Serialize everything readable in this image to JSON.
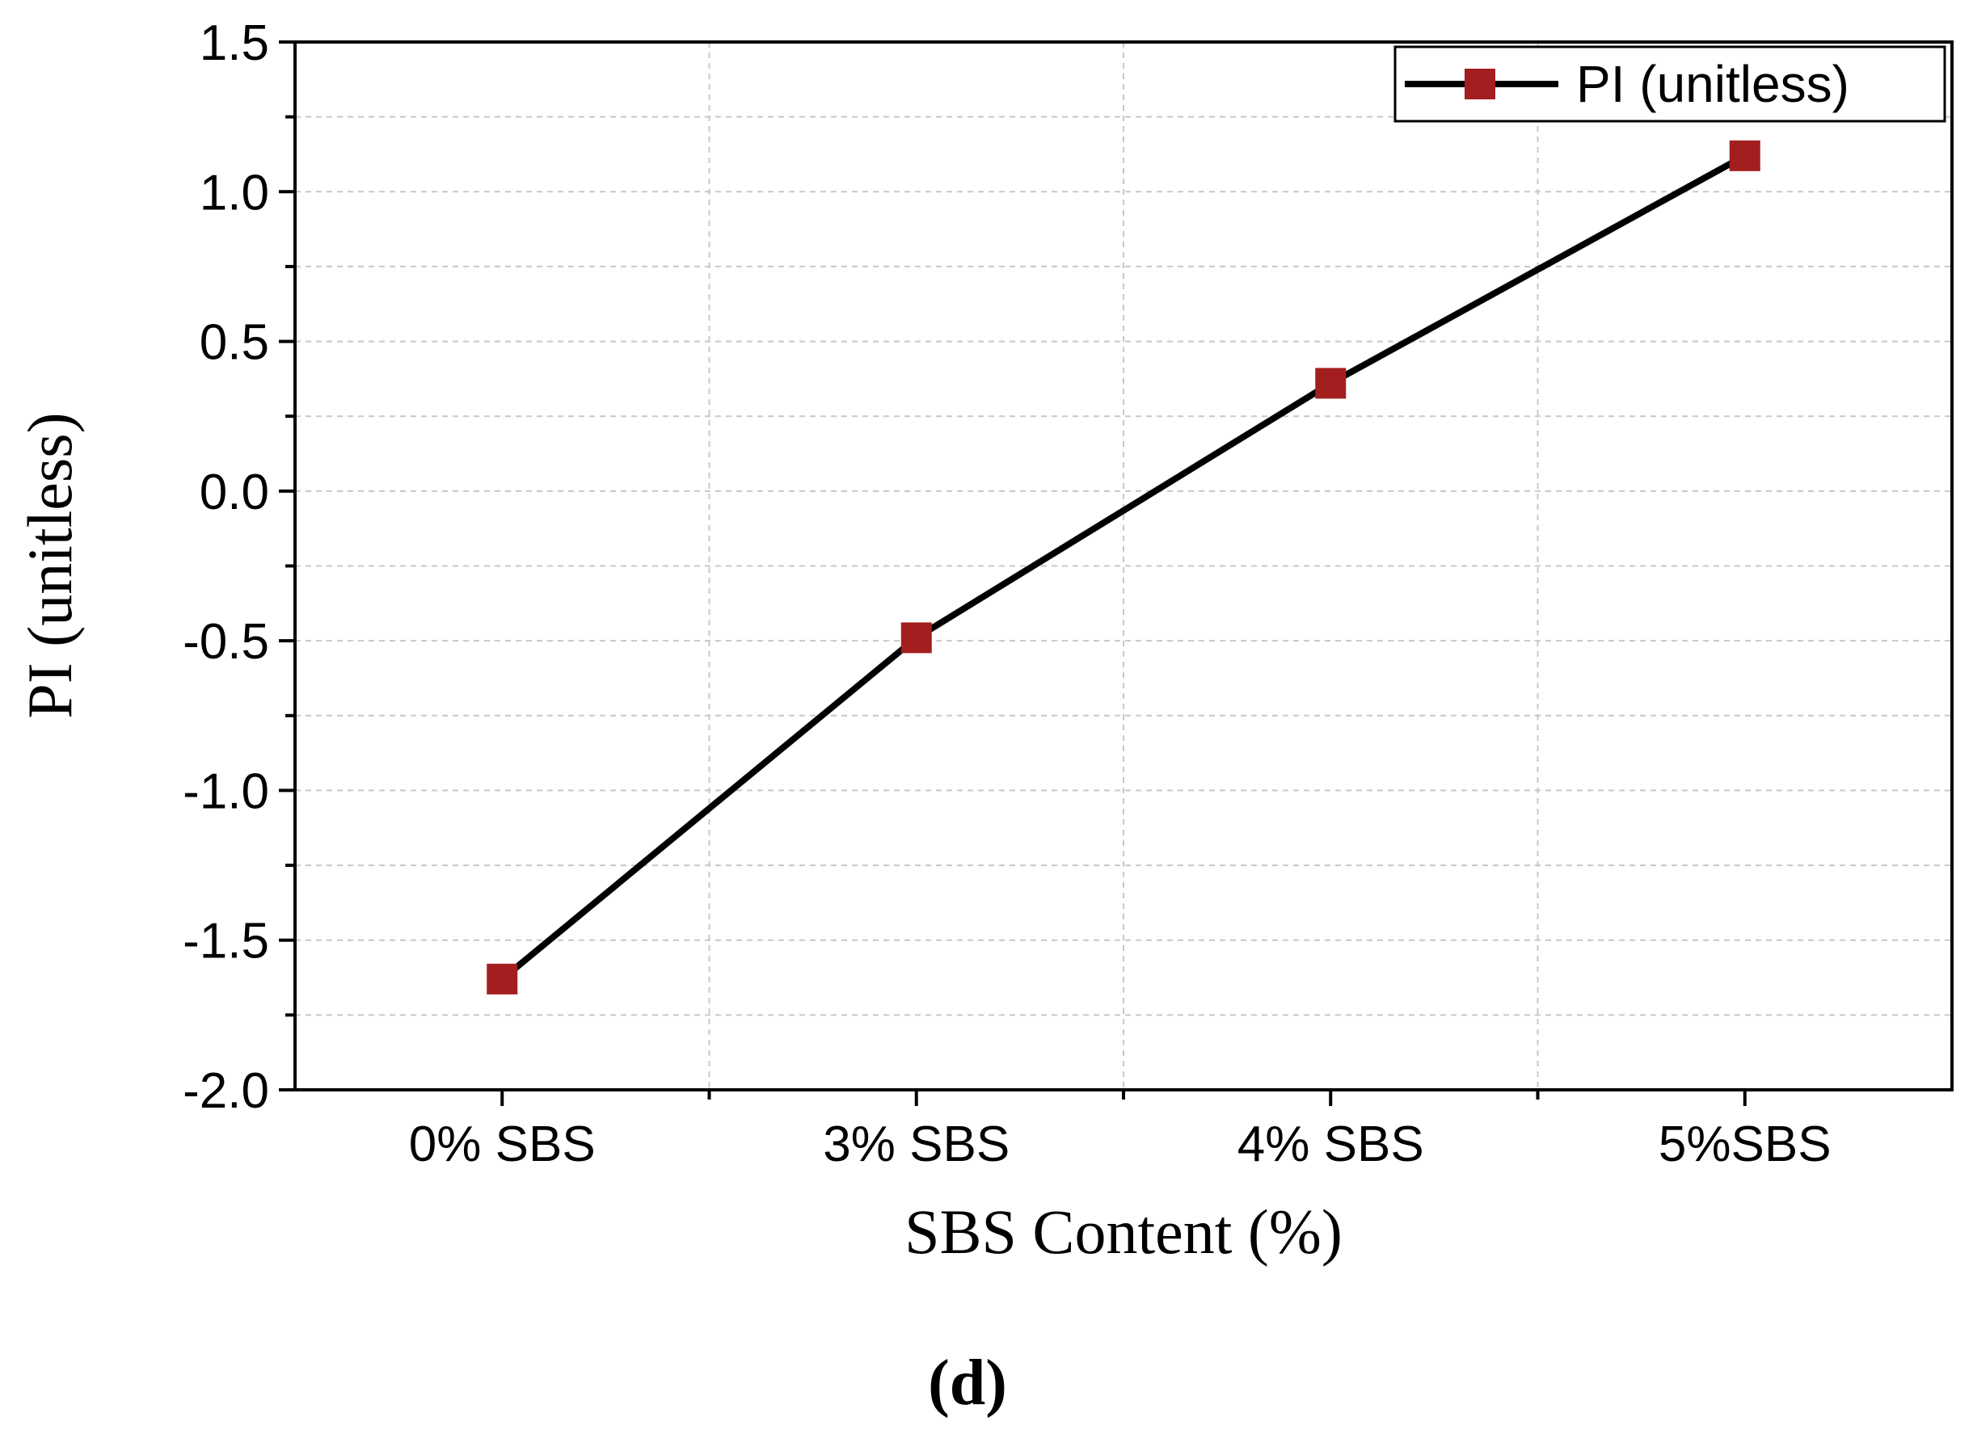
{
  "chart_data": {
    "type": "line",
    "categories": [
      "0% SBS",
      "3% SBS",
      "4% SBS",
      "5%SBS"
    ],
    "series": [
      {
        "name": "PI (unitless)",
        "values": [
          -1.63,
          -0.49,
          0.36,
          1.12
        ],
        "line_color": "#000000",
        "marker": "square",
        "marker_color": "#a31f1f"
      }
    ],
    "xlabel": "SBS Content (%)",
    "ylabel": "PI (unitless)",
    "ylim": [
      -2.0,
      1.5
    ],
    "yticks": [
      "1.5",
      "1.0",
      "0.5",
      "0.0",
      "-0.5",
      "-1.0",
      "-1.5",
      "-2.0"
    ],
    "grid": true,
    "legend_position": "top-right",
    "caption": "(d)"
  }
}
